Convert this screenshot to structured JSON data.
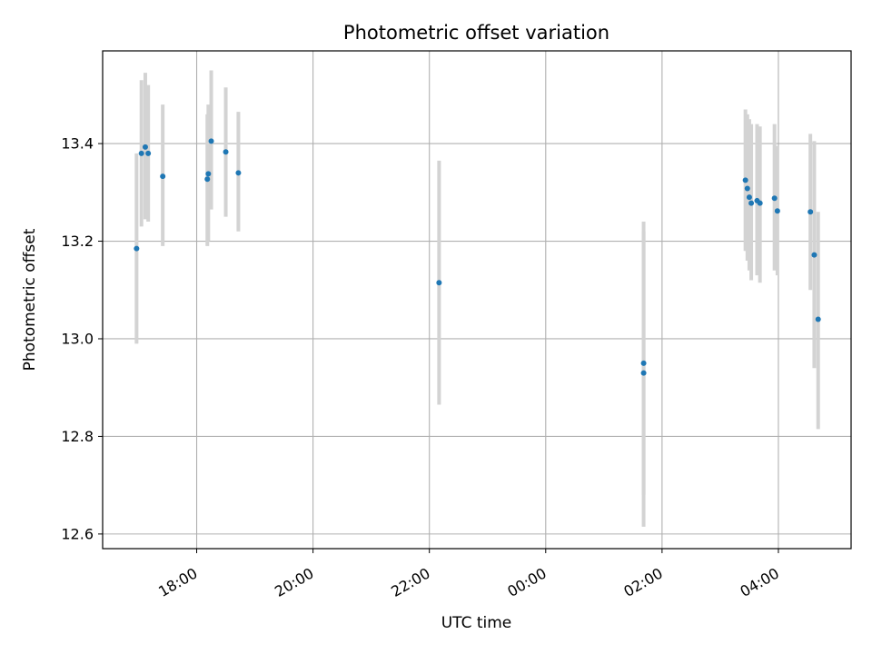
{
  "chart_data": {
    "type": "scatter",
    "title": "Photometric offset variation",
    "xlabel": "UTC time",
    "ylabel": "Photometric offset",
    "x_unit": "UTC datetime",
    "xlim": [
      "2000-01-01T16:23",
      "2000-01-02T05:15"
    ],
    "ylim": [
      12.57,
      13.59
    ],
    "x_ticks": [
      {
        "t": "2000-01-01T18:00",
        "label": "18:00"
      },
      {
        "t": "2000-01-01T20:00",
        "label": "20:00"
      },
      {
        "t": "2000-01-01T22:00",
        "label": "22:00"
      },
      {
        "t": "2000-01-02T00:00",
        "label": "00:00"
      },
      {
        "t": "2000-01-02T02:00",
        "label": "02:00"
      },
      {
        "t": "2000-01-02T04:00",
        "label": "04:00"
      }
    ],
    "y_ticks": [
      12.6,
      12.8,
      13.0,
      13.2,
      13.4
    ],
    "y_tick_labels": [
      "12.6",
      "12.8",
      "13.0",
      "13.2",
      "13.4"
    ],
    "grid": true,
    "marker_color": "#1f77b4",
    "errorbar_color": "#d3d3d3",
    "points": [
      {
        "t": "2000-01-01T16:58",
        "y": 13.185,
        "lo": 12.99,
        "hi": 13.38
      },
      {
        "t": "2000-01-01T17:03",
        "y": 13.38,
        "lo": 13.23,
        "hi": 13.53
      },
      {
        "t": "2000-01-01T17:07",
        "y": 13.393,
        "lo": 13.245,
        "hi": 13.545
      },
      {
        "t": "2000-01-01T17:10",
        "y": 13.38,
        "lo": 13.24,
        "hi": 13.52
      },
      {
        "t": "2000-01-01T17:25",
        "y": 13.333,
        "lo": 13.19,
        "hi": 13.48
      },
      {
        "t": "2000-01-01T18:11",
        "y": 13.327,
        "lo": 13.19,
        "hi": 13.46
      },
      {
        "t": "2000-01-01T18:12",
        "y": 13.338,
        "lo": 13.2,
        "hi": 13.48
      },
      {
        "t": "2000-01-01T18:15",
        "y": 13.405,
        "lo": 13.265,
        "hi": 13.55
      },
      {
        "t": "2000-01-01T18:30",
        "y": 13.383,
        "lo": 13.25,
        "hi": 13.515
      },
      {
        "t": "2000-01-01T18:43",
        "y": 13.34,
        "lo": 13.22,
        "hi": 13.465
      },
      {
        "t": "2000-01-01T22:10",
        "y": 13.115,
        "lo": 12.865,
        "hi": 13.365
      },
      {
        "t": "2000-01-02T01:41",
        "y": 12.95,
        "lo": 12.68,
        "hi": 13.22
      },
      {
        "t": "2000-01-02T01:41",
        "y": 12.93,
        "lo": 12.615,
        "hi": 13.24
      },
      {
        "t": "2000-01-02T03:26",
        "y": 13.325,
        "lo": 13.18,
        "hi": 13.47
      },
      {
        "t": "2000-01-02T03:28",
        "y": 13.308,
        "lo": 13.16,
        "hi": 13.46
      },
      {
        "t": "2000-01-02T03:30",
        "y": 13.29,
        "lo": 13.14,
        "hi": 13.45
      },
      {
        "t": "2000-01-02T03:32",
        "y": 13.278,
        "lo": 13.12,
        "hi": 13.44
      },
      {
        "t": "2000-01-02T03:38",
        "y": 13.283,
        "lo": 13.13,
        "hi": 13.44
      },
      {
        "t": "2000-01-02T03:41",
        "y": 13.278,
        "lo": 13.115,
        "hi": 13.435
      },
      {
        "t": "2000-01-02T03:56",
        "y": 13.288,
        "lo": 13.14,
        "hi": 13.44
      },
      {
        "t": "2000-01-02T03:59",
        "y": 13.262,
        "lo": 13.13,
        "hi": 13.395
      },
      {
        "t": "2000-01-02T04:33",
        "y": 13.26,
        "lo": 13.1,
        "hi": 13.42
      },
      {
        "t": "2000-01-02T04:37",
        "y": 13.172,
        "lo": 12.94,
        "hi": 13.405
      },
      {
        "t": "2000-01-02T04:41",
        "y": 13.04,
        "lo": 12.815,
        "hi": 13.26
      }
    ]
  }
}
